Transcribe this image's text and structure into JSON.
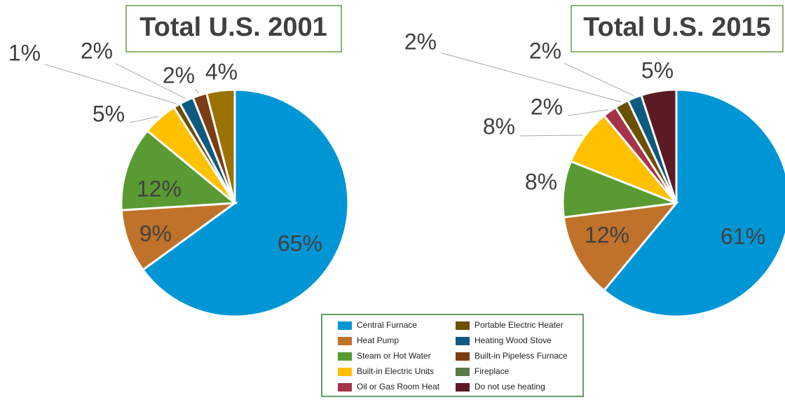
{
  "chart_data": [
    {
      "type": "pie",
      "title": "Total U.S. 2001",
      "values": [
        65,
        9,
        12,
        5,
        1,
        2,
        2,
        4
      ],
      "value_labels": [
        "65%",
        "9%",
        "12%",
        "5%",
        "1%",
        "2%",
        "2%",
        "4%"
      ],
      "colors": [
        "#0096d6",
        "#c0722a",
        "#5a9a32",
        "#ffc000",
        "#6b5000",
        "#0d5a80",
        "#7a3e14",
        "#9a7200"
      ]
    },
    {
      "type": "pie",
      "title": "Total U.S. 2015",
      "values": [
        61,
        12,
        8,
        8,
        2,
        2,
        2,
        5
      ],
      "value_labels": [
        "61%",
        "12%",
        "8%",
        "8%",
        "2%",
        "2%",
        "2%",
        "5%"
      ],
      "colors": [
        "#0096d6",
        "#c0722a",
        "#5a9a32",
        "#ffc000",
        "#a5334a",
        "#6b5000",
        "#0d5a80",
        "#5c1a22"
      ]
    }
  ],
  "legend": {
    "items": [
      {
        "name": "Central Furnace",
        "color": "#0096d6"
      },
      {
        "name": "Heat Pump",
        "color": "#c0722a"
      },
      {
        "name": "Steam or Hot Water",
        "color": "#5a9a32"
      },
      {
        "name": "Built-in Electric Units",
        "color": "#ffc000"
      },
      {
        "name": "Oil or Gas Room Heat",
        "color": "#a5334a"
      },
      {
        "name": "Portable Electric Heater",
        "color": "#6b5000"
      },
      {
        "name": "Heating Wood Stove",
        "color": "#0d5a80"
      },
      {
        "name": "Built-in Pipeless Furnace",
        "color": "#7a3e14"
      },
      {
        "name": "Fireplace",
        "color": "#5b7a4a"
      },
      {
        "name": "Do not use heating",
        "color": "#5c1a22"
      }
    ]
  }
}
